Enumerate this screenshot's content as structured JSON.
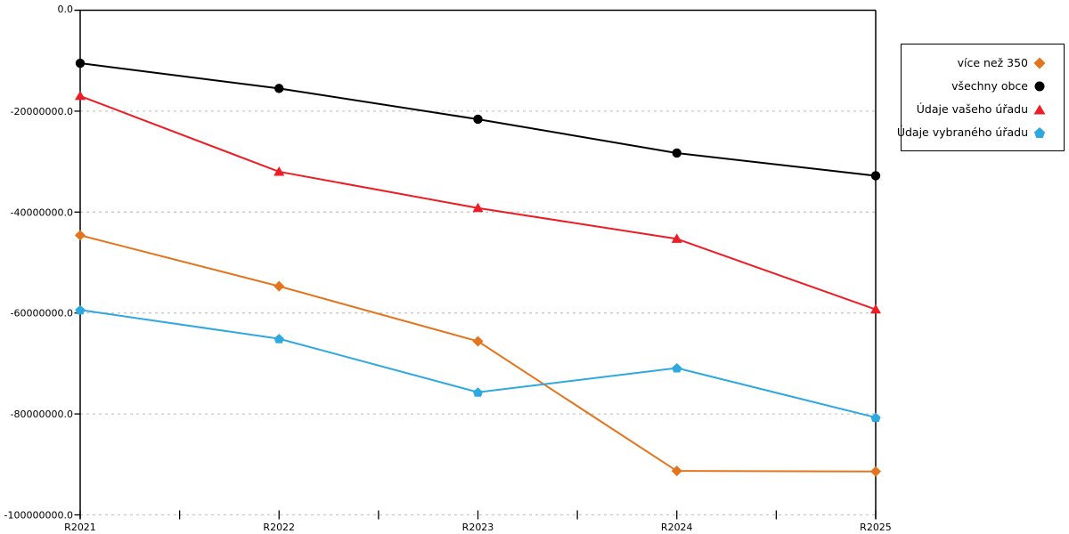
{
  "chart_data": {
    "type": "line",
    "title": "",
    "xlabel": "",
    "ylabel": "",
    "categories": [
      "R2021",
      "R2022",
      "R2023",
      "R2024",
      "R2025"
    ],
    "series": [
      {
        "name": "více než 350",
        "marker": "diamond",
        "color": "#E2751D",
        "values": [
          -44600000,
          -54700000,
          -65600000,
          -91300000,
          -91400000
        ]
      },
      {
        "name": "všechny obce",
        "marker": "circle",
        "color": "#000000",
        "values": [
          -10500000,
          -15500000,
          -21600000,
          -28300000,
          -32800000
        ]
      },
      {
        "name": "Údaje vašeho úřadu",
        "marker": "triangle",
        "color": "#EE1C25",
        "values": [
          -17000000,
          -32000000,
          -39200000,
          -45300000,
          -59300000
        ]
      },
      {
        "name": "Údaje vybraného úřadu",
        "marker": "pentagon",
        "color": "#2EA8E0",
        "values": [
          -59400000,
          -65100000,
          -75700000,
          -70900000,
          -80700000
        ]
      }
    ],
    "ylim": [
      -100000000,
      0
    ],
    "ytick_step": 20000000,
    "ytick_labels": [
      "0.0",
      "-20000000.0",
      "-40000000.0",
      "-60000000.0",
      "-80000000.0",
      "-100000000.0"
    ],
    "grid": "horizontal-dashed",
    "gridline_color": "#C8C8C8",
    "axis_color": "#000000",
    "legend_position": "top-right"
  }
}
